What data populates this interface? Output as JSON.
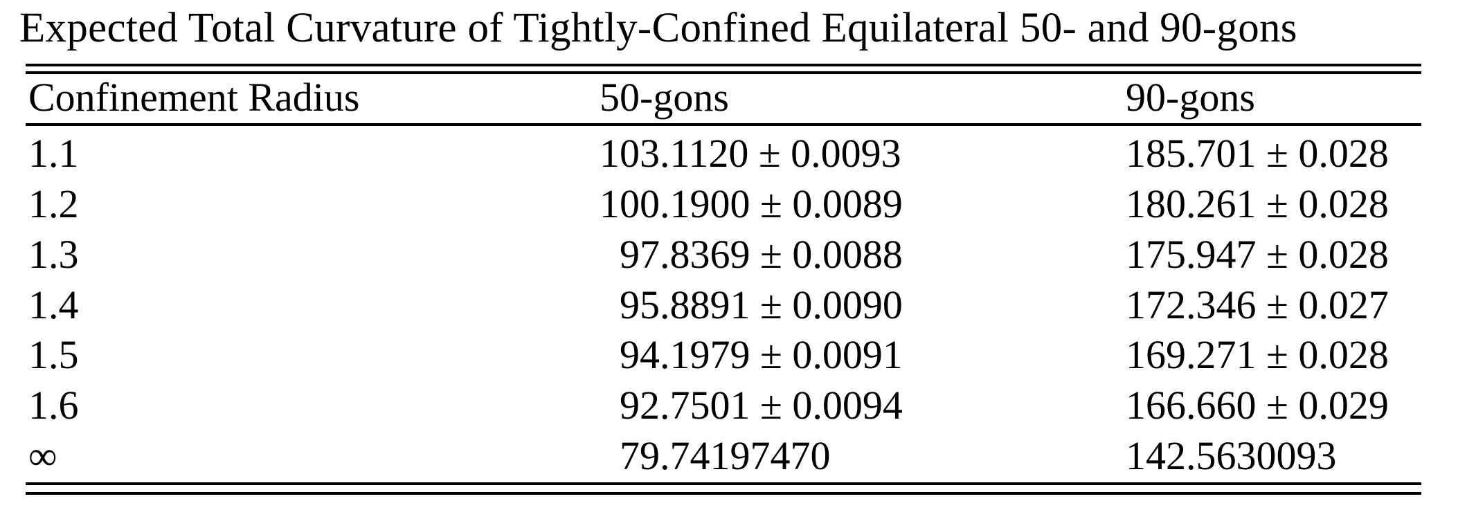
{
  "title": "Expected Total Curvature of Tightly-Confined Equilateral 50- and 90-gons",
  "table": {
    "columns": [
      "Confinement Radius",
      "50-gons",
      "90-gons"
    ],
    "pm_symbol": "±",
    "rows": [
      {
        "radius": "1.1",
        "gons50": {
          "value": "103.1120",
          "pm": "0.0093"
        },
        "gons90": {
          "value": "185.701",
          "pm": "0.028"
        }
      },
      {
        "radius": "1.2",
        "gons50": {
          "value": "100.1900",
          "pm": "0.0089"
        },
        "gons90": {
          "value": "180.261",
          "pm": "0.028"
        }
      },
      {
        "radius": "1.3",
        "gons50": {
          "value": "97.8369",
          "pm": "0.0088"
        },
        "gons90": {
          "value": "175.947",
          "pm": "0.028"
        }
      },
      {
        "radius": "1.4",
        "gons50": {
          "value": "95.8891",
          "pm": "0.0090"
        },
        "gons90": {
          "value": "172.346",
          "pm": "0.027"
        }
      },
      {
        "radius": "1.5",
        "gons50": {
          "value": "94.1979",
          "pm": "0.0091"
        },
        "gons90": {
          "value": "169.271",
          "pm": "0.028"
        }
      },
      {
        "radius": "1.6",
        "gons50": {
          "value": "92.7501",
          "pm": "0.0094"
        },
        "gons90": {
          "value": "166.660",
          "pm": "0.029"
        }
      },
      {
        "radius": "∞",
        "gons50": {
          "value": "79.74197470",
          "pm": null
        },
        "gons90": {
          "value": "142.5630093",
          "pm": null
        }
      }
    ]
  },
  "colors": {
    "background": "#ffffff",
    "text": "#000000",
    "rule": "#000000"
  }
}
